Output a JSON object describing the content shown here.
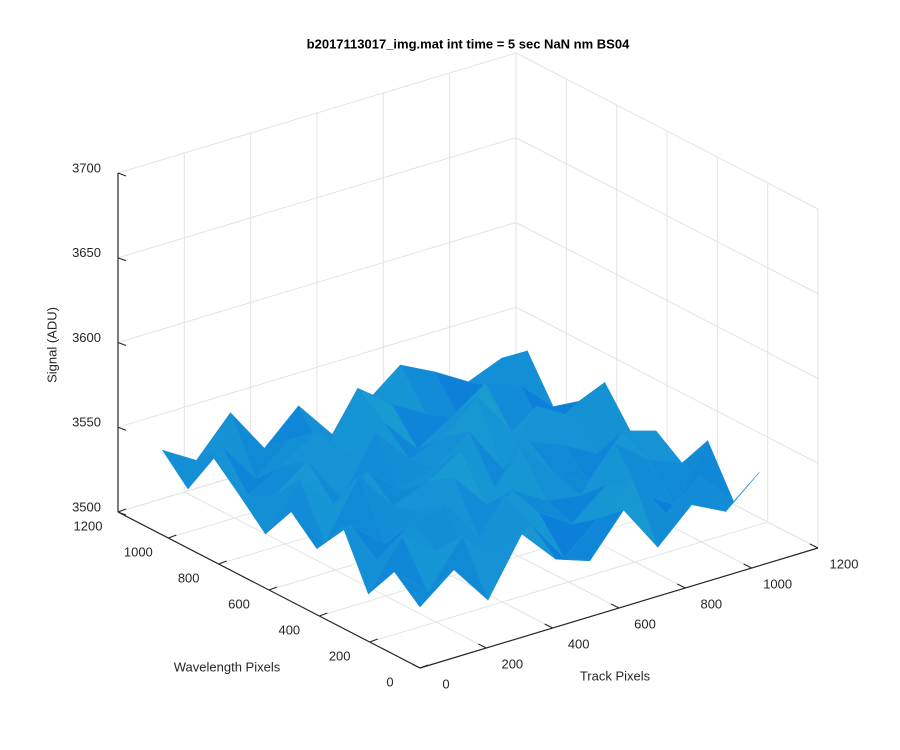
{
  "chart_data": {
    "type": "surface",
    "title": "b2017113017_img.mat int time = 5 sec  NaN nm BS04",
    "xlabel": "Track Pixels",
    "ylabel": "Wavelength Pixels",
    "zlabel": "Signal (ADU)",
    "x": [
      0,
      102,
      205,
      307,
      410,
      512,
      614,
      717,
      819,
      922,
      1023
    ],
    "y": [
      0,
      102,
      205,
      307,
      410,
      512,
      614,
      717,
      819,
      922,
      1023
    ],
    "z": [
      [
        3536,
        3552,
        3528,
        3561,
        3540,
        3533,
        3557,
        3529,
        3548,
        3538,
        3555
      ],
      [
        3549,
        3531,
        3558,
        3537,
        3553,
        3527,
        3544,
        3562,
        3535,
        3551,
        3530
      ],
      [
        3528,
        3556,
        3541,
        3530,
        3562,
        3546,
        3533,
        3550,
        3539,
        3526,
        3558
      ],
      [
        3560,
        3534,
        3549,
        3555,
        3529,
        3551,
        3539,
        3536,
        3561,
        3545,
        3537
      ],
      [
        3539,
        3547,
        3530,
        3543,
        3557,
        3535,
        3563,
        3541,
        3530,
        3554,
        3548
      ],
      [
        3553,
        3529,
        3562,
        3538,
        3546,
        3559,
        3531,
        3552,
        3544,
        3533,
        3540
      ],
      [
        3532,
        3558,
        3537,
        3551,
        3534,
        3541,
        3556,
        3528,
        3559,
        3547,
        3561
      ],
      [
        3547,
        3540,
        3555,
        3527,
        3560,
        3538,
        3545,
        3563,
        3536,
        3529,
        3542
      ],
      [
        3561,
        3533,
        3544,
        3558,
        3539,
        3552,
        3530,
        3543,
        3557,
        3550,
        3531
      ],
      [
        3535,
        3554,
        3529,
        3546,
        3531,
        3564,
        3549,
        3537,
        3528,
        3541,
        3556
      ],
      [
        3550,
        3538,
        3560,
        3533,
        3552,
        3529,
        3542,
        3558,
        3548,
        3536,
        3544
      ]
    ],
    "xlim": [
      0,
      1200
    ],
    "xticks": [
      0,
      200,
      400,
      600,
      800,
      1000,
      1200
    ],
    "ylim": [
      0,
      1200
    ],
    "yticks": [
      0,
      200,
      400,
      600,
      800,
      1000,
      1200
    ],
    "zlim": [
      3500,
      3700
    ],
    "zticks": [
      3500,
      3550,
      3600,
      3650,
      3700
    ],
    "grid": true
  }
}
